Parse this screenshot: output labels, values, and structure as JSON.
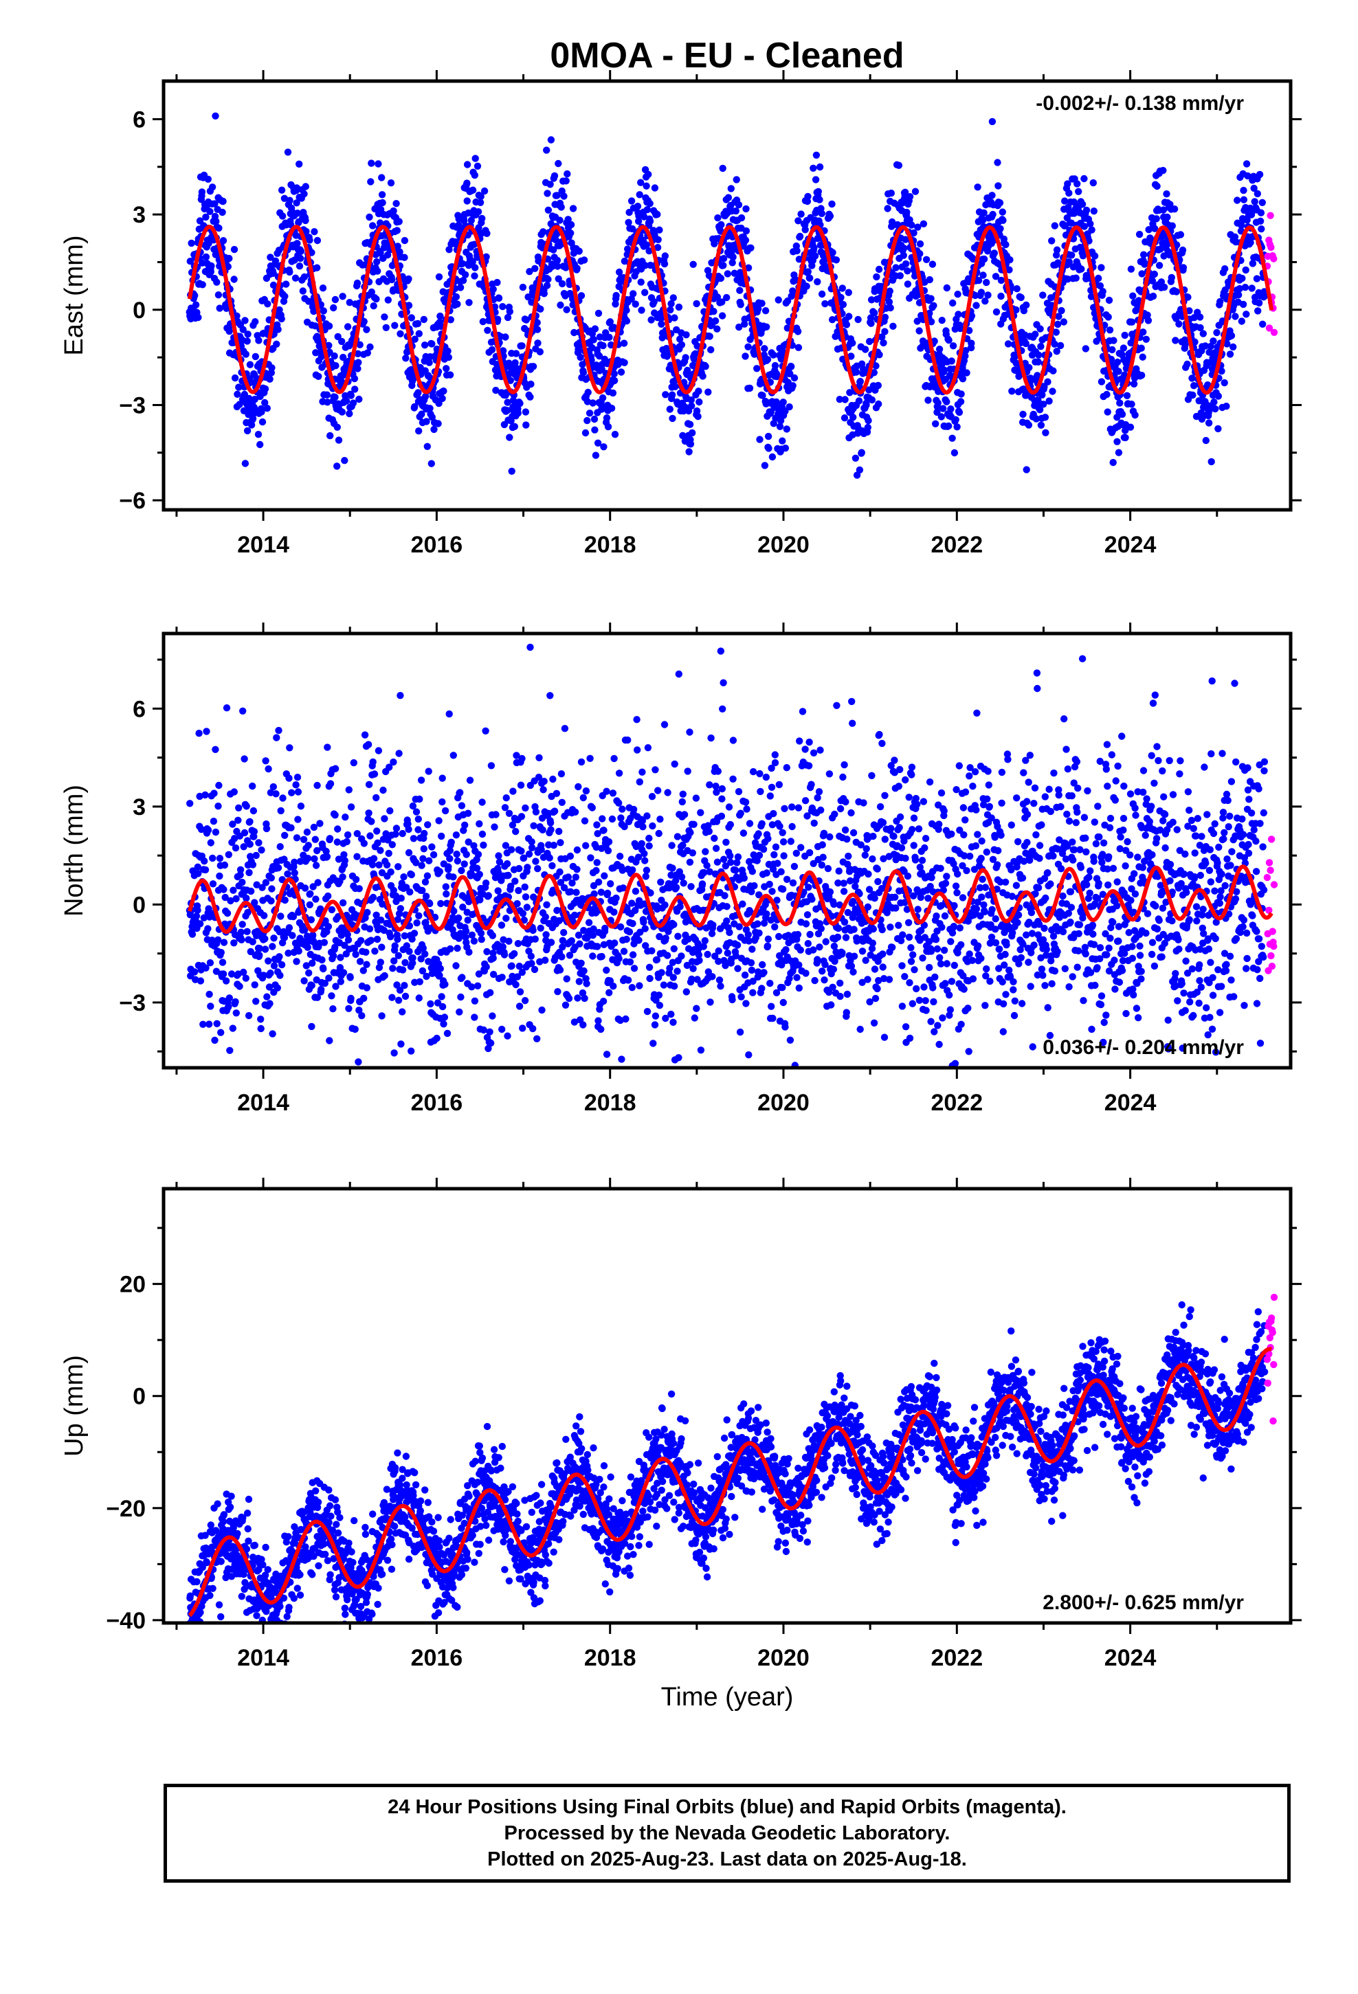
{
  "title": "0MOA  - EU - Cleaned",
  "x_axis_title": "Time (year)",
  "colors": {
    "final": "#0000ff",
    "rapid": "#ff00ff",
    "model": "#ff0000"
  },
  "footer": {
    "line1": "24 Hour Positions Using Final Orbits (blue) and Rapid Orbits (magenta).",
    "line2": "Processed by the Nevada Geodetic Laboratory.",
    "line3": "Plotted on 2025-Aug-23. Last data on 2025-Aug-18."
  },
  "chart_data": [
    {
      "type": "scatter",
      "name": "east",
      "ylabel": "East (mm)",
      "rate_text": "-0.002+/- 0.138 mm/yr",
      "rate_position": "top-right",
      "xlim": [
        2012.85,
        2025.85
      ],
      "ylim": [
        -6.3,
        7.2
      ],
      "xticks": [
        2014,
        2016,
        2018,
        2020,
        2022,
        2024
      ],
      "yticks": [
        -6,
        -3,
        0,
        3,
        6
      ],
      "x_range": [
        2013.15,
        2025.63
      ],
      "rapid_range": [
        2025.55,
        2025.63
      ],
      "model": {
        "trend_mm_per_yr": -0.002,
        "offset": 0.0,
        "annual_amplitude": 2.6,
        "annual_peak_phase_year": 0.38,
        "semiannual_amplitude": 0.0,
        "semiannual_peak_phase_year": 0.0
      },
      "scatter_sd": 1.05,
      "point_count": 3400,
      "grid": false
    },
    {
      "type": "scatter",
      "name": "north",
      "ylabel": "North (mm)",
      "rate_text": "0.036+/- 0.204 mm/yr",
      "rate_position": "bottom-right",
      "xlim": [
        2012.85,
        2025.85
      ],
      "ylim": [
        -5.0,
        8.3
      ],
      "xticks": [
        2014,
        2016,
        2018,
        2020,
        2022,
        2024
      ],
      "yticks": [
        -3,
        0,
        3,
        6
      ],
      "x_range": [
        2013.15,
        2025.63
      ],
      "rapid_range": [
        2025.55,
        2025.63
      ],
      "model": {
        "trend_mm_per_yr": 0.036,
        "offset": 0.0,
        "annual_amplitude": 0.35,
        "annual_peak_phase_year": 0.3,
        "semiannual_amplitude": 0.6,
        "semiannual_peak_phase_year": 0.3
      },
      "scatter_sd": 1.8,
      "point_count": 3400,
      "grid": false
    },
    {
      "type": "scatter",
      "name": "up",
      "ylabel": "Up (mm)",
      "rate_text": "2.800+/- 0.625 mm/yr",
      "rate_position": "bottom-right",
      "xlim": [
        2012.85,
        2025.85
      ],
      "ylim": [
        -40.5,
        37.0
      ],
      "xticks": [
        2014,
        2016,
        2018,
        2020,
        2022,
        2024
      ],
      "yticks": [
        -40,
        -20,
        0,
        20
      ],
      "x_range": [
        2013.15,
        2025.63
      ],
      "rapid_range": [
        2025.55,
        2025.63
      ],
      "model": {
        "trend_mm_per_yr": 2.8,
        "offset": -15.5,
        "annual_amplitude": 6.5,
        "annual_peak_phase_year": 0.6,
        "semiannual_amplitude": 0.0,
        "semiannual_peak_phase_year": 0.0
      },
      "scatter_sd": 4.2,
      "point_count": 3400,
      "grid": false
    }
  ]
}
